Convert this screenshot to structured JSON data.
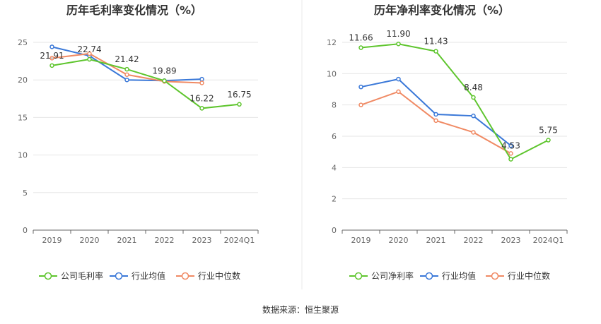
{
  "source": "数据来源：恒生聚源",
  "colors": {
    "company": "#5ec52d",
    "industry_avg": "#3a78d8",
    "industry_median": "#f08a64"
  },
  "chart_data": [
    {
      "type": "line",
      "title": "历年毛利率变化情况（%）",
      "categories": [
        "2019",
        "2020",
        "2021",
        "2022",
        "2023",
        "2024Q1"
      ],
      "ylim": [
        0,
        25
      ],
      "yticks": [
        0,
        5,
        10,
        15,
        20,
        25
      ],
      "grid": true,
      "legend": "bottom",
      "series": [
        {
          "name": "公司毛利率",
          "key": "company",
          "values": [
            21.91,
            22.74,
            21.42,
            19.89,
            16.22,
            16.75
          ],
          "labels": [
            "21.91",
            "22.74",
            "21.42",
            "19.89",
            "16.22",
            "16.75"
          ]
        },
        {
          "name": "行业均值",
          "key": "industry_avg",
          "values": [
            24.4,
            23.2,
            20.0,
            19.9,
            20.1,
            null
          ]
        },
        {
          "name": "行业中位数",
          "key": "industry_median",
          "values": [
            22.9,
            23.5,
            20.7,
            19.8,
            19.6,
            null
          ]
        }
      ]
    },
    {
      "type": "line",
      "title": "历年净利率变化情况（%）",
      "categories": [
        "2019",
        "2020",
        "2021",
        "2022",
        "2023",
        "2024Q1"
      ],
      "ylim": [
        0,
        12
      ],
      "yticks": [
        0,
        2,
        4,
        6,
        8,
        10,
        12
      ],
      "grid": true,
      "legend": "bottom",
      "series": [
        {
          "name": "公司净利率",
          "key": "company",
          "values": [
            11.66,
            11.9,
            11.43,
            8.48,
            4.53,
            5.75
          ],
          "labels": [
            "11.66",
            "11.90",
            "11.43",
            "8.48",
            "4.53",
            "5.75"
          ]
        },
        {
          "name": "行业均值",
          "key": "industry_avg",
          "values": [
            9.15,
            9.65,
            7.4,
            7.3,
            5.4,
            null
          ]
        },
        {
          "name": "行业中位数",
          "key": "industry_median",
          "values": [
            8.0,
            8.85,
            7.0,
            6.25,
            4.9,
            null
          ]
        }
      ]
    }
  ]
}
